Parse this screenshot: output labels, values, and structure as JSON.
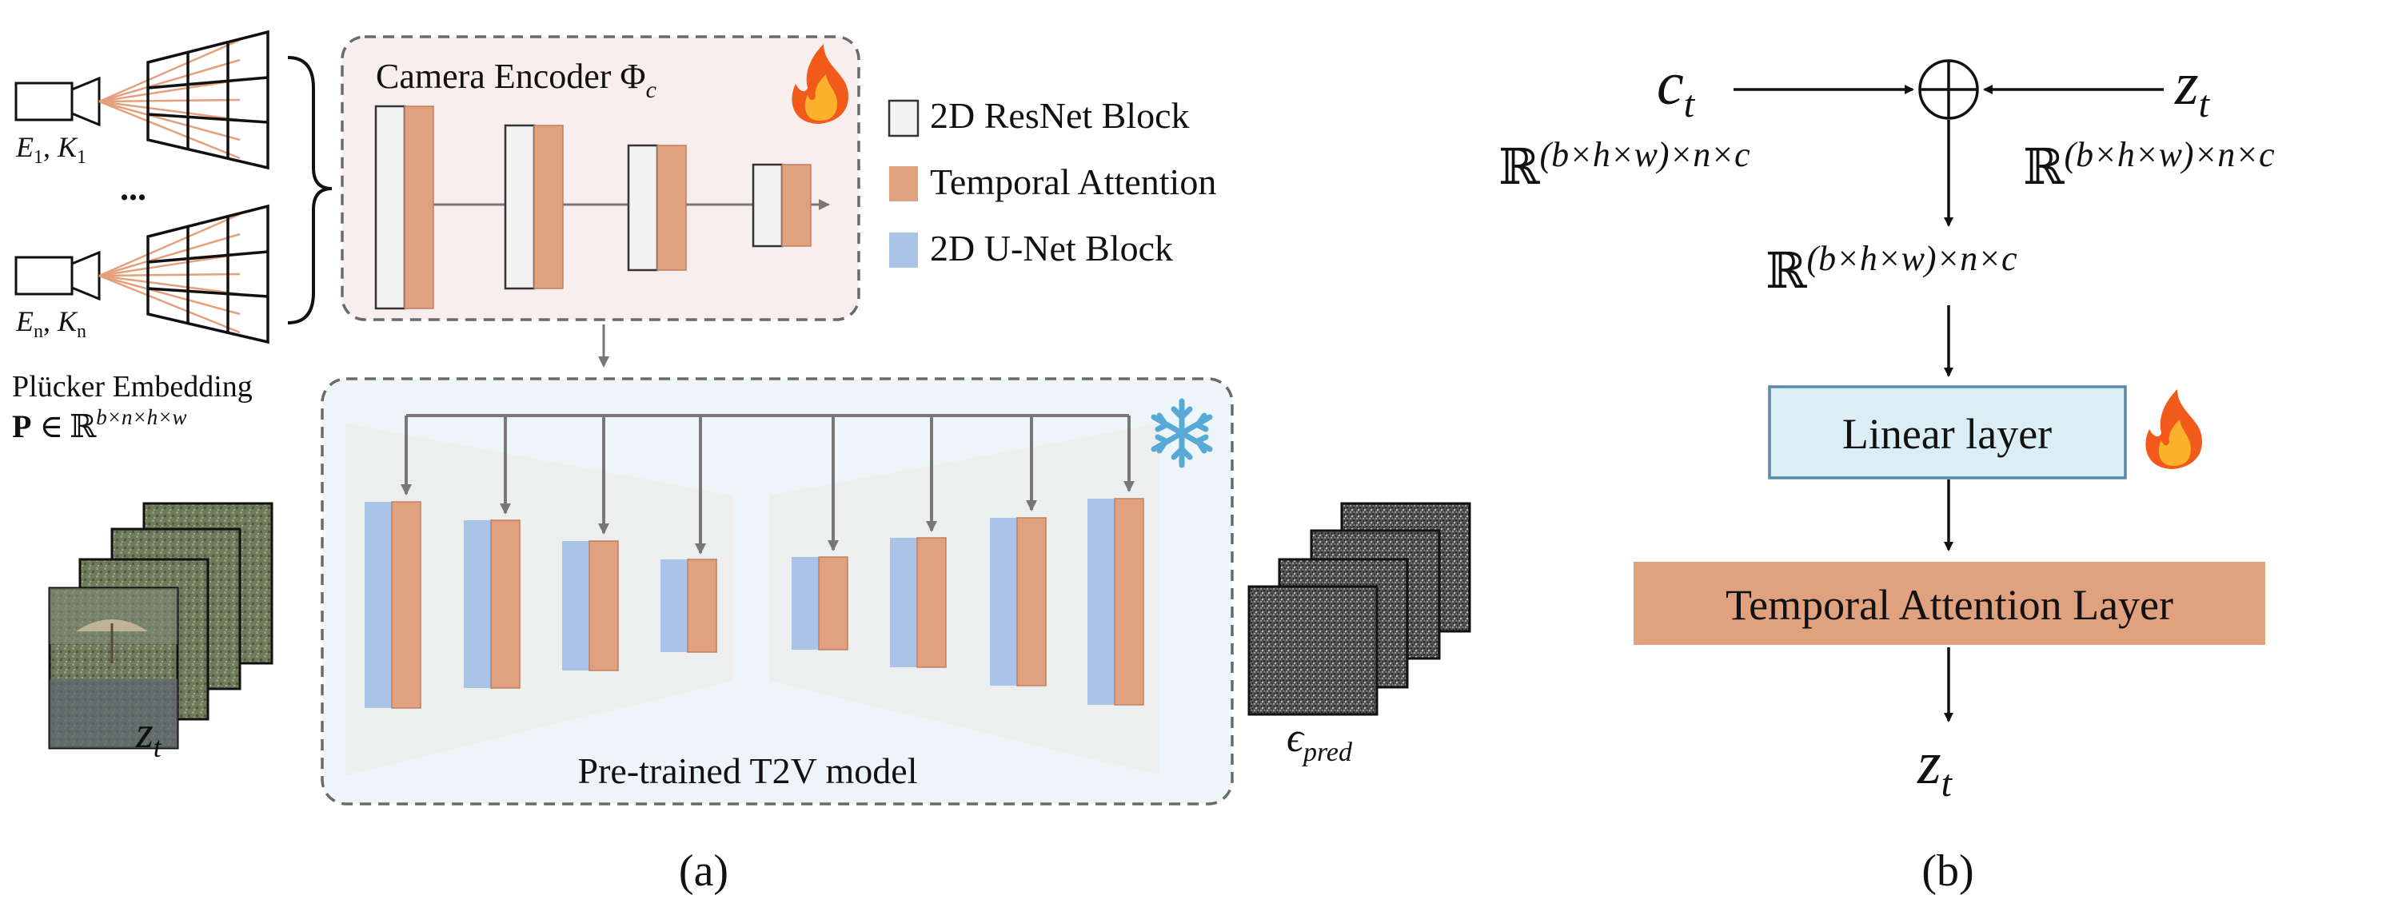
{
  "panel_a": {
    "cameras": [
      {
        "label_E": "E",
        "sub_E": "1",
        "label_K": "K",
        "sub_K": "1"
      },
      {
        "label_E": "E",
        "sub_E": "n",
        "label_K": "K",
        "sub_K": "n"
      }
    ],
    "ellipsis": "...",
    "plucker": {
      "title": "Plücker  Embedding",
      "P": "P",
      "in": "∈",
      "R": "ℝ",
      "dims": "b×n×h×w"
    },
    "zt": {
      "z": "z",
      "sub": "t"
    },
    "encoder": {
      "title": "Camera Encoder Φ",
      "sub": "c"
    },
    "legend": [
      {
        "label": "2D ResNet Block",
        "color": "#f2f2f2"
      },
      {
        "label": "Temporal Attention",
        "color": "#e0a27e"
      },
      {
        "label": "2D U-Net Block",
        "color": "#a9c4e7"
      }
    ],
    "t2v_label": "Pre-trained T2V model",
    "eps": {
      "e": "ϵ",
      "sub": "pred"
    },
    "caption": "(a)",
    "icons": {
      "fire": "fire-icon",
      "snowflake": "snowflake-icon"
    }
  },
  "panel_b": {
    "ct": {
      "c": "c",
      "sub": "t"
    },
    "zt_in": {
      "z": "z",
      "sub": "t"
    },
    "dim_text": "(b×h×w)×n×c",
    "R": "ℝ",
    "plus": "⊕",
    "linear_label": "Linear layer",
    "temporal_label": "Temporal Attention Layer",
    "zt_out": {
      "z": "z",
      "sub": "t"
    },
    "caption": "(b)"
  },
  "colors": {
    "encoder_bg": "#f9eeee",
    "t2v_bg": "#eef5f8",
    "resnet": "#f2f2f2",
    "temporal": "#e0a27e",
    "unet": "#a9c4e7",
    "linear_bg": "#dbeef5",
    "linear_border": "#5a8aa6",
    "temporal_layer": "#e0a27e",
    "gray_line": "#777777"
  }
}
